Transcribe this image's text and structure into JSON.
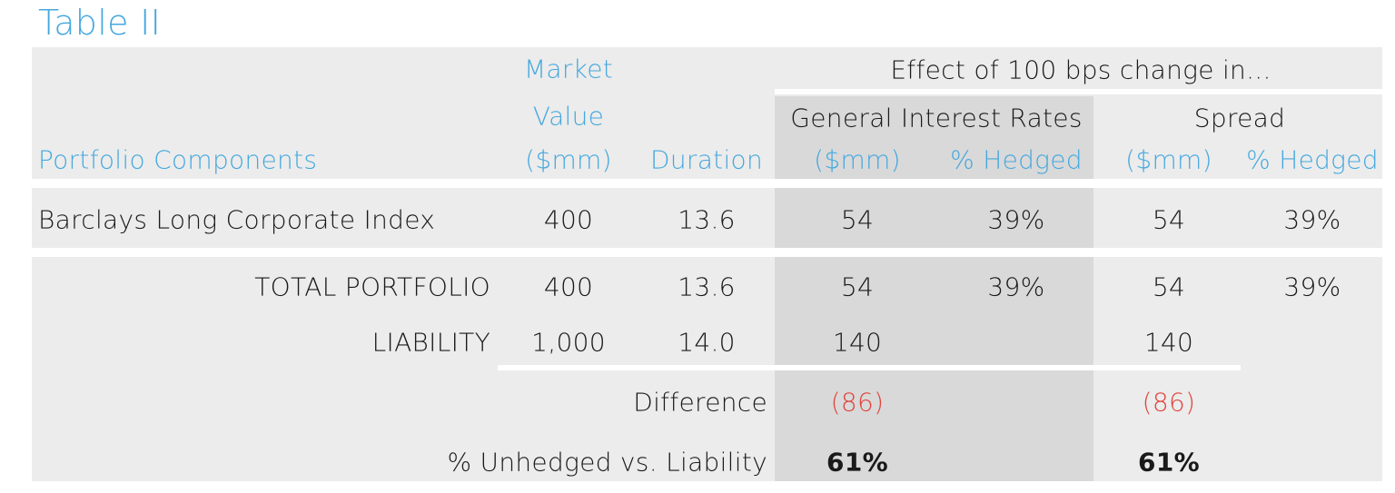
{
  "title": "Table II",
  "header": {
    "market_value": [
      "Market",
      "Value"
    ],
    "effect": "Effect of 100 bps change in...",
    "groups": [
      "General Interest Rates",
      "Spread"
    ],
    "columns": [
      "Portfolio Components",
      "($mm)",
      "Duration",
      "($mm)",
      "% Hedged",
      "($mm)",
      "% Hedged"
    ]
  },
  "rows": [
    [
      "Barclays Long Corporate Index",
      "400",
      "13.6",
      "54",
      "39%",
      "54",
      "39%"
    ]
  ],
  "totals": [
    [
      "TOTAL PORTFOLIO",
      "400",
      "13.6",
      "54",
      "39%",
      "54",
      "39%"
    ],
    [
      "LIABILITY",
      "1,000",
      "14.0",
      "140",
      "140"
    ]
  ],
  "difference": {
    "label": "Difference",
    "values": [
      "(86)",
      "(86)"
    ]
  },
  "unhedged": {
    "label": "% Unhedged vs. Liability",
    "values": [
      "61%",
      "61%"
    ]
  }
}
